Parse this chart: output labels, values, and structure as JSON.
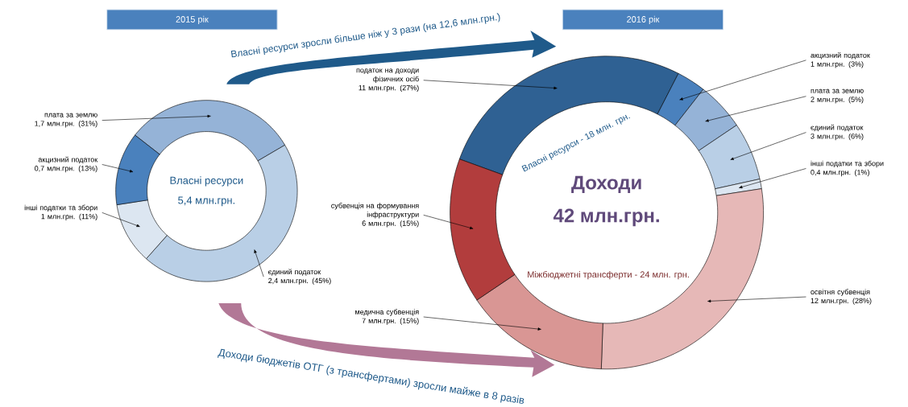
{
  "chart_data": [
    {
      "type": "donut",
      "title": "2015 рік",
      "categories": [
        "плата за землю",
        "єдиний податок",
        "інші податки та збори",
        "акцизний податок"
      ],
      "values": [
        31,
        45,
        11,
        13
      ],
      "value_labels": [
        "1,7 млн.грн. (31%)",
        "2,4 млн.грн. (45%)",
        "1 млн.грн. (11%)",
        "0,7 млн.грн. (13%)"
      ],
      "colors": [
        "#95b3d7",
        "#b9cfe6",
        "#dce6f1",
        "#4a81bd"
      ],
      "annotations": [
        "Власні ресурси",
        "5,4 млн.грн.",
        "Власні ресурси зросли більше ніж у 3 рази (на 12,6 млн.грн.)",
        "Доходи бюджетів ОТГ (з трансфертами) зросли майже в 8 разів"
      ]
    },
    {
      "type": "donut",
      "title": "2016 рік",
      "categories": [
        "податок на доходи фізичних осіб",
        "акцизний податок",
        "плата за землю",
        "єдиний податок",
        "інші податки та збори",
        "освітня субвенція",
        "медична субвенція",
        "субвенція на формування інфраструктури"
      ],
      "values": [
        27,
        3,
        5,
        6,
        1,
        28,
        15,
        15
      ],
      "value_labels": [
        "11 млн.грн. (27%)",
        "1 млн.грн. (3%)",
        "2 млн.грн. (5%)",
        "3 млн.грн. (6%)",
        "0,4 млн.грн. (1%)",
        "12 млн.грн. (28%)",
        "7 млн.грн. (15%)",
        "6 млн.грн. (15%)"
      ],
      "colors": [
        "#2f6193",
        "#4a81bd",
        "#95b3d7",
        "#b9cfe6",
        "#dce6f1",
        "#e6b8b7",
        "#d99694",
        "#b23d3d"
      ],
      "annotations": [
        "Доходи",
        "42 млн.грн.",
        "Власні ресурси - 18 млн. грн.",
        "Міжбюджетні трансферти - 24 млн. грн."
      ]
    }
  ]
}
